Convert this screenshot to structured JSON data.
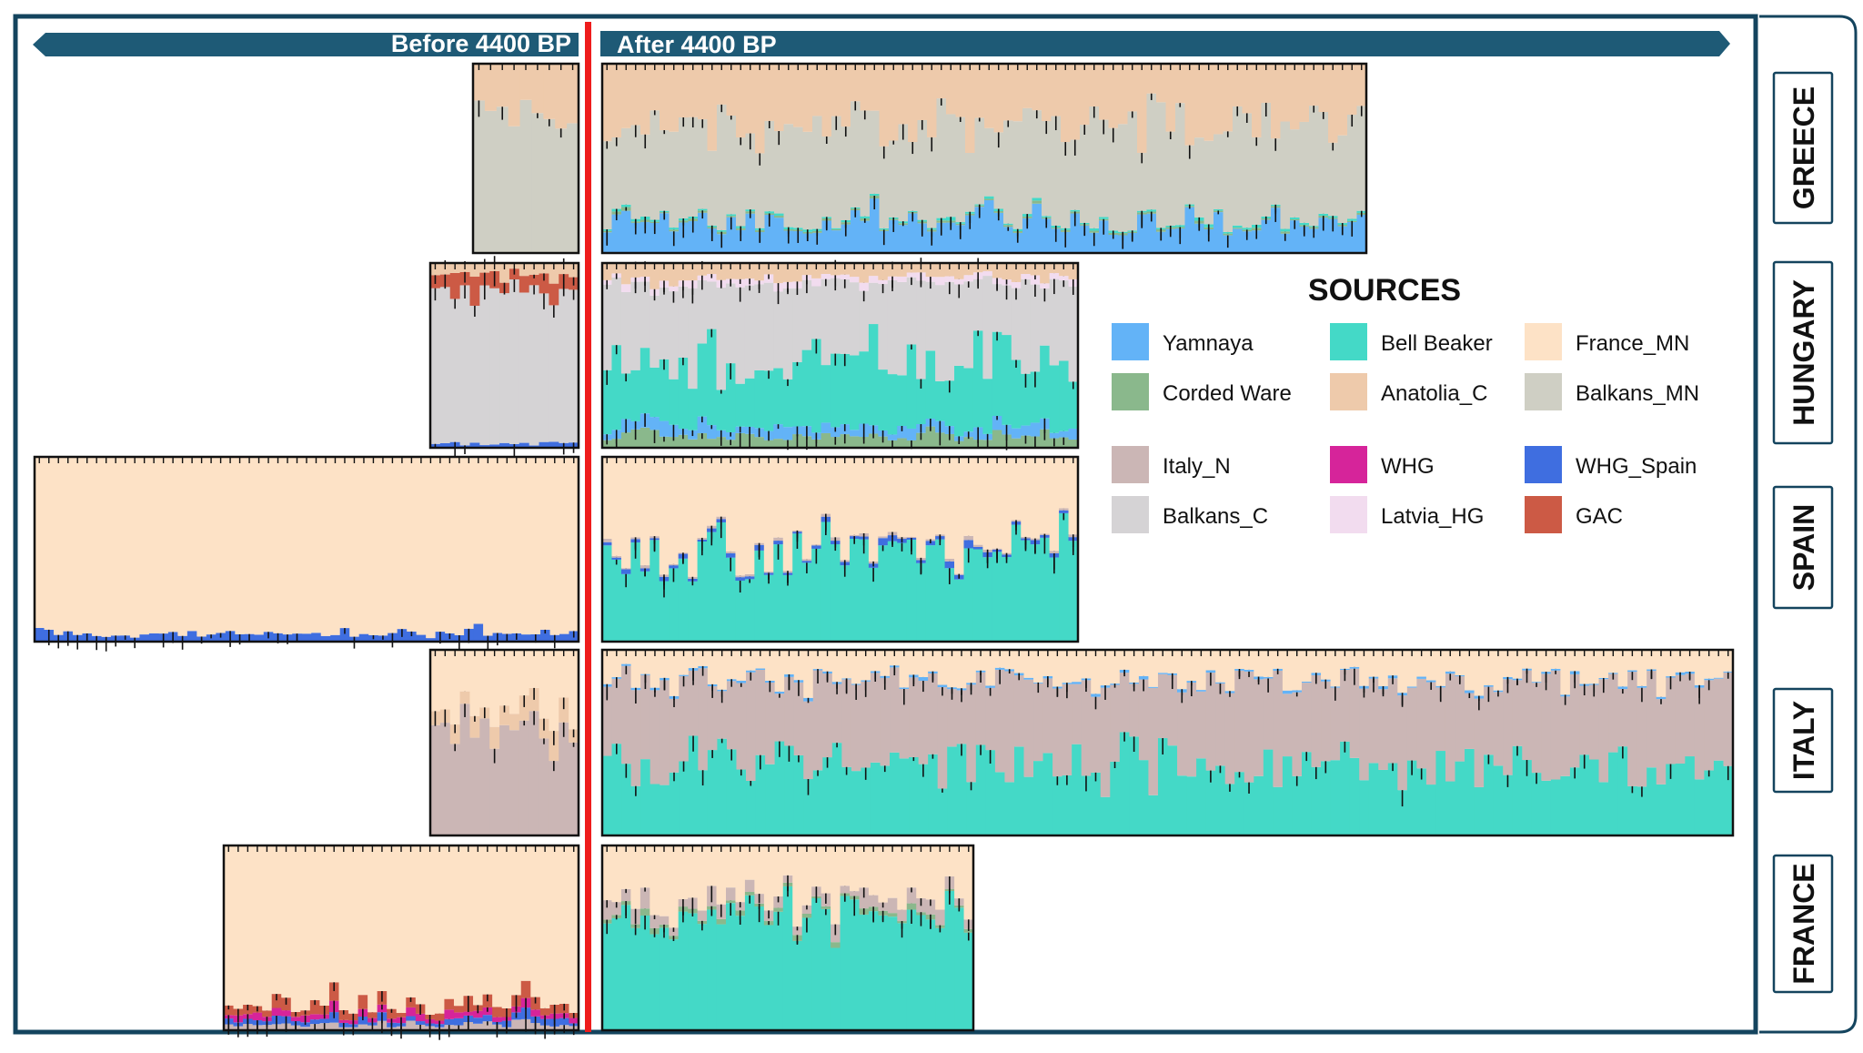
{
  "headers": {
    "before": "Before 4400 BP",
    "after": "After 4400 BP"
  },
  "legend": {
    "title": "SOURCES",
    "items": [
      {
        "key": "yamnaya",
        "label": "Yamnaya",
        "color": "#63b3f7"
      },
      {
        "key": "bell_beaker",
        "label": "Bell Beaker",
        "color": "#44d9c7"
      },
      {
        "key": "france_mn",
        "label": "France_MN",
        "color": "#fde2c6"
      },
      {
        "key": "corded_ware",
        "label": "Corded Ware",
        "color": "#8ab88c"
      },
      {
        "key": "anatolia_c",
        "label": "Anatolia_C",
        "color": "#eecaab"
      },
      {
        "key": "balkans_mn",
        "label": "Balkans_MN",
        "color": "#cfcfc4"
      },
      {
        "key": "italy_n",
        "label": "Italy_N",
        "color": "#cbb6b5"
      },
      {
        "key": "whg",
        "label": "WHG",
        "color": "#d6249a"
      },
      {
        "key": "whg_spain",
        "label": "WHG_Spain",
        "color": "#3f6ee0"
      },
      {
        "key": "balkans_c",
        "label": "Balkans_C",
        "color": "#d5d3d5"
      },
      {
        "key": "latvia_hg",
        "label": "Latvia_HG",
        "color": "#f2dcef"
      },
      {
        "key": "gac",
        "label": "GAC",
        "color": "#cc5a45"
      }
    ]
  },
  "colors": {
    "frame": "#14445e",
    "divider": "#ee1c1c",
    "banner": "#1e5a76",
    "banner_text": "#ffffff"
  },
  "chart_data": {
    "type": "stacked-bar",
    "description_units": "ancestry proportion per individual (0-1), stacked bottom to top",
    "time_periods": [
      "Before 4400 BP",
      "After 4400 BP"
    ],
    "regions": [
      {
        "name": "GREECE",
        "before": {
          "individuals": 9,
          "mean": {
            "balkans_mn": 0.75,
            "anatolia_c": 0.25
          }
        },
        "after": {
          "individuals": 80,
          "mean": {
            "yamnaya": 0.17,
            "corded_ware": 0.01,
            "bell_beaker": 0.01,
            "balkans_mn": 0.5,
            "anatolia_c": 0.31
          }
        }
      },
      {
        "name": "HUNGARY",
        "before": {
          "individuals": 15,
          "mean": {
            "whg_spain": 0.02,
            "balkans_c": 0.84,
            "gac": 0.08,
            "anatolia_c": 0.06
          }
        },
        "after": {
          "individuals": 50,
          "mean": {
            "corded_ware": 0.06,
            "yamnaya": 0.05,
            "bell_beaker": 0.38,
            "balkans_c": 0.4,
            "latvia_hg": 0.03,
            "anatolia_c": 0.08
          }
        }
      },
      {
        "name": "SPAIN",
        "before": {
          "individuals": 57,
          "mean": {
            "whg_spain": 0.04,
            "france_mn": 0.96
          }
        },
        "after": {
          "individuals": 50,
          "mean": {
            "bell_beaker": 0.48,
            "whg_spain": 0.02,
            "italy_n": 0.01,
            "france_mn": 0.49
          }
        }
      },
      {
        "name": "ITALY",
        "before": {
          "individuals": 15,
          "mean": {
            "italy_n": 0.55,
            "anatolia_c": 0.1,
            "france_mn": 0.35
          }
        },
        "after": {
          "individuals": 118,
          "mean": {
            "bell_beaker": 0.38,
            "italy_n": 0.45,
            "yamnaya": 0.01,
            "france_mn": 0.16
          }
        }
      },
      {
        "name": "FRANCE",
        "before": {
          "individuals": 37,
          "mean": {
            "italy_n": 0.03,
            "whg_spain": 0.03,
            "whg": 0.03,
            "gac": 0.05,
            "france_mn": 0.86
          }
        },
        "after": {
          "individuals": 39,
          "mean": {
            "bell_beaker": 0.66,
            "corded_ware": 0.02,
            "italy_n": 0.06,
            "france_mn": 0.26
          }
        }
      }
    ]
  }
}
